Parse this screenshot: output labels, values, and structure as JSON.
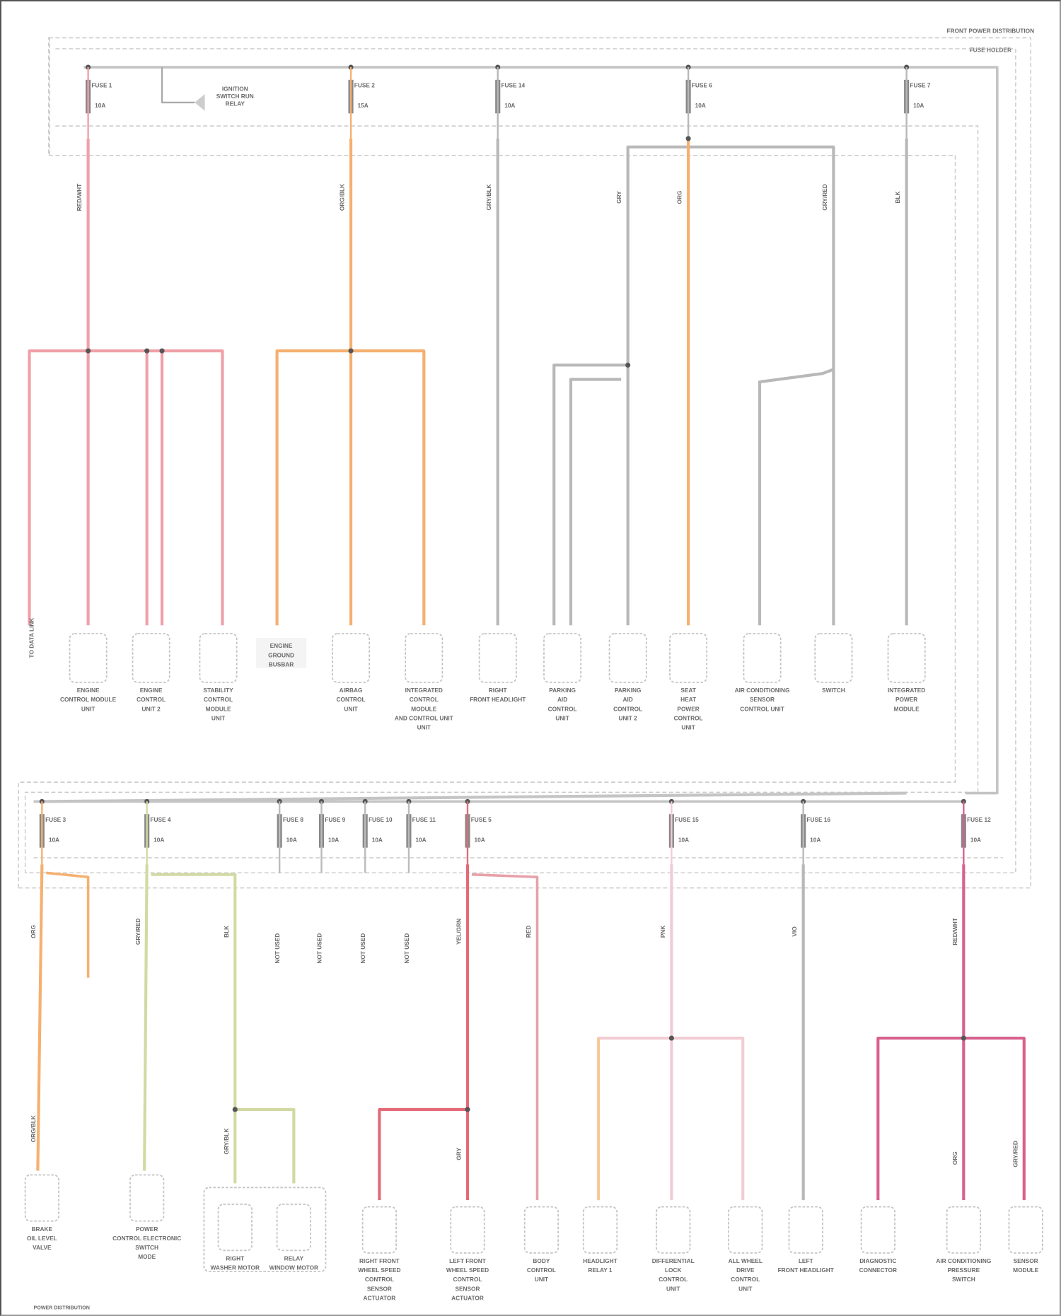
{
  "diagram": {
    "header_labels": [
      "FRONT POWER DISTRIBUTION",
      "FUSE HOLDER"
    ],
    "footer_label": "POWER DISTRIBUTION",
    "relay_label": [
      "IGNITION",
      "SWITCH RUN",
      "RELAY"
    ],
    "colors": {
      "pink": "#f0a0a8",
      "orange": "#f5b070",
      "grey": "#b8b8b8",
      "yellow_green": "#d2d9a2",
      "red": "#e46a78",
      "magenta": "#d8608e",
      "light_pink": "#f2ccd4",
      "dash": "#c8c8c8"
    },
    "top_fuses": [
      {
        "name": "FUSE 1",
        "rating": "10A"
      },
      {
        "name": "FUSE 2",
        "rating": "15A"
      },
      {
        "name": "FUSE 14",
        "rating": "10A"
      },
      {
        "name": "FUSE 6",
        "rating": "10A"
      },
      {
        "name": "FUSE 7",
        "rating": "10A"
      }
    ],
    "bottom_fuses": [
      {
        "name": "FUSE 3",
        "rating": "10A"
      },
      {
        "name": "FUSE 4",
        "rating": "10A"
      },
      {
        "name": "FUSE 8",
        "rating": "10A"
      },
      {
        "name": "FUSE 9",
        "rating": "10A"
      },
      {
        "name": "FUSE 10",
        "rating": "10A"
      },
      {
        "name": "FUSE 11",
        "rating": "10A"
      },
      {
        "name": "FUSE 5",
        "rating": "10A"
      },
      {
        "name": "FUSE 15",
        "rating": "10A"
      },
      {
        "name": "FUSE 16",
        "rating": "10A"
      },
      {
        "name": "FUSE 12",
        "rating": "10A"
      }
    ],
    "top_components": [
      {
        "label": [
          "ENGINE",
          "CONTROL MODULE",
          "UNIT"
        ]
      },
      {
        "label": [
          "ENGINE",
          "CONTROL",
          "UNIT 2"
        ]
      },
      {
        "label": [
          "STABILITY",
          "CONTROL",
          "MODULE",
          "UNIT"
        ]
      },
      {
        "label": [
          "AIRBAG",
          "CONTROL",
          "UNIT"
        ]
      },
      {
        "label": [
          "INTEGRATED",
          "CONTROL",
          "MODULE",
          "AND CONTROL UNIT",
          "UNIT"
        ]
      },
      {
        "label": [
          "RIGHT",
          "FRONT HEADLIGHT"
        ]
      },
      {
        "label": [
          "PARKING",
          "AID",
          "CONTROL",
          "UNIT"
        ]
      },
      {
        "label": [
          "PARKING",
          "AID",
          "CONTROL",
          "UNIT 2"
        ]
      },
      {
        "label": [
          "SEAT",
          "HEAT",
          "POWER",
          "CONTROL",
          "UNIT"
        ]
      },
      {
        "label": [
          "AIR CONDITIONING",
          "SENSOR",
          "CONTROL UNIT"
        ]
      },
      {
        "label": [
          "SWITCH"
        ]
      },
      {
        "label": [
          "INTEGRATED",
          "POWER",
          "MODULE"
        ]
      }
    ],
    "top_text_block": [
      "ENGINE",
      "GROUND",
      "BUSBAR"
    ],
    "top_side_note": "TO DATA LINK",
    "bottom_components": [
      {
        "label": [
          "BRAKE",
          "OIL LEVEL",
          "VALVE"
        ]
      },
      {
        "label": [
          "POWER",
          "CONTROL ELECTRONIC",
          "SWITCH",
          "MODE"
        ]
      },
      {
        "label": [
          "RIGHT",
          "WASHER MOTOR"
        ]
      },
      {
        "label": [
          "RELAY",
          "WINDOW MOTOR"
        ]
      },
      {
        "label": [
          "RIGHT FRONT",
          "WHEEL SPEED",
          "CONTROL",
          "SENSOR",
          "ACTUATOR"
        ]
      },
      {
        "label": [
          "LEFT FRONT",
          "WHEEL SPEED",
          "CONTROL",
          "SENSOR",
          "ACTUATOR"
        ]
      },
      {
        "label": [
          "BODY",
          "CONTROL",
          "UNIT"
        ]
      },
      {
        "label": [
          "HEADLIGHT",
          "RELAY 1"
        ]
      },
      {
        "label": [
          "DIFFERENTIAL",
          "LOCK",
          "CONTROL",
          "UNIT"
        ]
      },
      {
        "label": [
          "ALL WHEEL",
          "DRIVE",
          "CONTROL",
          "UNIT"
        ]
      },
      {
        "label": [
          "LEFT",
          "FRONT HEADLIGHT"
        ]
      },
      {
        "label": [
          "DIAGNOSTIC",
          "CONNECTOR"
        ]
      },
      {
        "label": [
          "AIR CONDITIONING",
          "PRESSURE",
          "SWITCH"
        ]
      },
      {
        "label": [
          "SENSOR",
          "MODULE"
        ]
      }
    ],
    "stub_notes": [
      "NOT USED",
      "NOT USED",
      "NOT USED",
      "NOT USED"
    ],
    "wire_codes": [
      "RED/WHT",
      "ORG/BLK",
      "GRY/BLK",
      "GRY",
      "ORG",
      "GRY/RED",
      "BLK",
      "YEL/GRN",
      "RED",
      "PNK",
      "VIO"
    ]
  }
}
